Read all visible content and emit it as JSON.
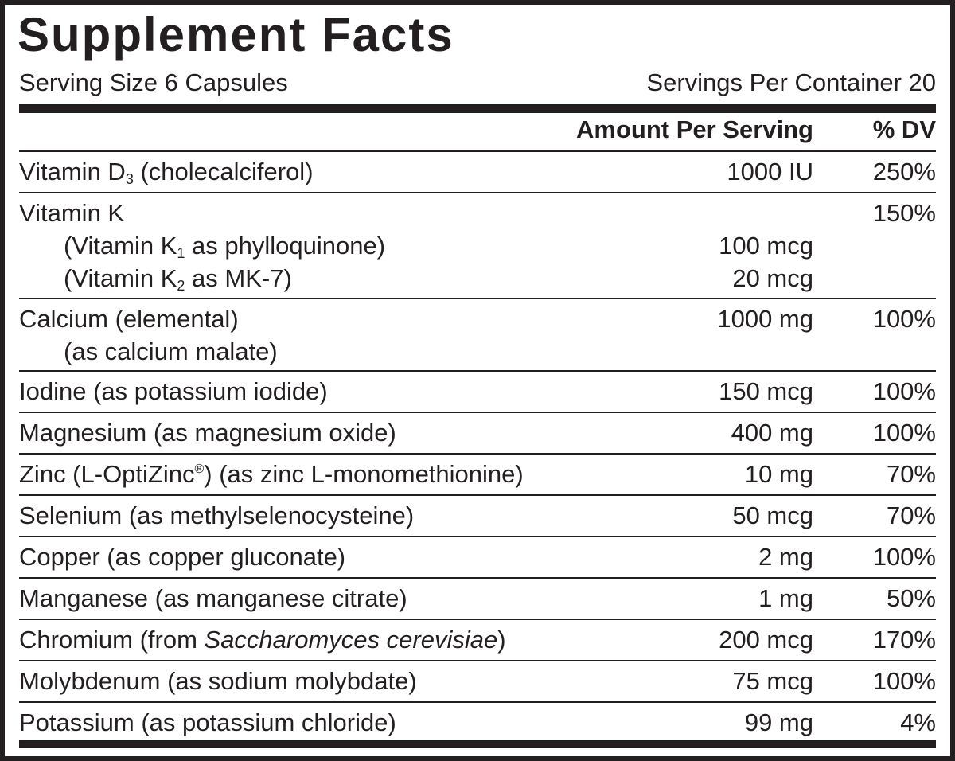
{
  "title": "Supplement Facts",
  "serving_size": "Serving Size 6 Capsules",
  "servings_per_container": "Servings Per Container 20",
  "header": {
    "amount": "Amount Per Serving",
    "dv": "% DV"
  },
  "rows": [
    {
      "name": "Vitamin D",
      "sub": "3",
      "rest": " (cholecalciferol)",
      "amount": "1000 IU",
      "dv": "250%"
    },
    {
      "name": "Vitamin K",
      "amount": "",
      "dv": "150%",
      "sublines": [
        {
          "name": "(Vitamin K",
          "sub": "1",
          "rest": " as phylloquinone)",
          "amount": "100 mcg"
        },
        {
          "name": "(Vitamin K",
          "sub": "2",
          "rest": " as MK-7)",
          "amount": "20 mcg"
        }
      ]
    },
    {
      "name": "Calcium (elemental)",
      "amount": "1000 mg",
      "dv": "100%",
      "subline": "(as calcium malate)"
    },
    {
      "name": "Iodine (as potassium iodide)",
      "amount": "150 mcg",
      "dv": "100%"
    },
    {
      "name": "Magnesium (as magnesium oxide)",
      "amount": "400 mg",
      "dv": "100%"
    },
    {
      "name": "Zinc (L-OptiZinc",
      "sup": "®",
      "rest": ") (as zinc L-monomethionine)",
      "amount": "10 mg",
      "dv": "70%"
    },
    {
      "name": "Selenium (as methylselenocysteine)",
      "amount": "50 mcg",
      "dv": "70%"
    },
    {
      "name": "Copper (as copper gluconate)",
      "amount": "2 mg",
      "dv": "100%"
    },
    {
      "name": "Manganese (as manganese citrate)",
      "amount": "1 mg",
      "dv": "50%"
    },
    {
      "name": "Chromium (from ",
      "italic": "Saccharomyces cerevisiae",
      "rest": ")",
      "amount": "200 mcg",
      "dv": "170%"
    },
    {
      "name": "Molybdenum (as sodium molybdate)",
      "amount": "75 mcg",
      "dv": "100%"
    },
    {
      "name": "Potassium (as potassium chloride)",
      "amount": "99 mg",
      "dv": "4%"
    }
  ]
}
